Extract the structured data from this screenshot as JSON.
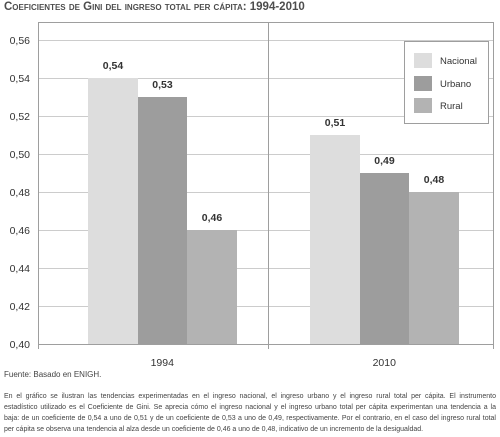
{
  "chart_data": {
    "type": "bar",
    "title": "Coeficientes de Gini del ingreso total per cápita: 1994-2010",
    "categories": [
      "1994",
      "2010"
    ],
    "series": [
      {
        "name": "Nacional",
        "values": [
          0.54,
          0.51
        ],
        "labels": [
          "0,54",
          "0,51"
        ],
        "color": "#dddddd"
      },
      {
        "name": "Urbano",
        "values": [
          0.53,
          0.49
        ],
        "labels": [
          "0,53",
          "0,49"
        ],
        "color": "#9d9d9d"
      },
      {
        "name": "Rural",
        "values": [
          0.46,
          0.48
        ],
        "labels": [
          "0,46",
          "0,48"
        ],
        "color": "#b3b3b3"
      }
    ],
    "xlabel": "",
    "ylabel": "",
    "ylim": [
      0.4,
      0.56
    ],
    "yticks": [
      0.4,
      0.42,
      0.44,
      0.46,
      0.48,
      0.5,
      0.52,
      0.54,
      0.56
    ],
    "ytick_labels": [
      "0,40",
      "0,42",
      "0,44",
      "0,46",
      "0,48",
      "0,50",
      "0,52",
      "0,54",
      "0,56"
    ],
    "grid": true,
    "legend_position": "top-right"
  },
  "source": "Fuente: Basado en ENIGH.",
  "description_lines": [
    "En el gráfico se ilustran las tendencias experimentadas en el ingreso nacional, el ingreso urbano y el ingreso rural total per cápita. El instrumento",
    "estadístico utilizado es el Coeficiente de Gini. Se aprecia cómo el ingreso nacional y el ingreso urbano total per cápita experimentan una tendencia a la",
    "baja: de un coeficiente de 0,54 a uno de 0,51 y de un coeficiente de 0,53 a uno de 0,49, respectivamente. Por el contrario, en el caso del ingreso rural total",
    "per cápita se observa una tendencia al alza desde un coeficiente de 0,46 a uno de 0,48, indicativo de un incremento de la desigualdad."
  ]
}
